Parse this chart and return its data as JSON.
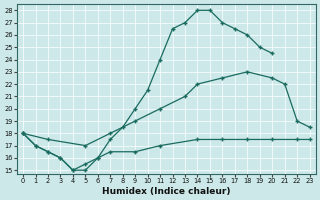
{
  "xlabel": "Humidex (Indice chaleur)",
  "bg_color": "#cce8e8",
  "line_color": "#1a6b60",
  "grid_color": "#b8d8d8",
  "xlim": [
    -0.5,
    23.5
  ],
  "ylim": [
    14.7,
    28.5
  ],
  "yticks": [
    15,
    16,
    17,
    18,
    19,
    20,
    21,
    22,
    23,
    24,
    25,
    26,
    27,
    28
  ],
  "xticks": [
    0,
    1,
    2,
    3,
    4,
    5,
    6,
    7,
    8,
    9,
    10,
    11,
    12,
    13,
    14,
    15,
    16,
    17,
    18,
    19,
    20,
    21,
    22,
    23
  ],
  "line1_x": [
    0,
    1,
    2,
    3,
    4,
    5,
    6,
    7,
    8,
    9,
    10,
    11,
    12,
    13,
    14,
    15,
    16,
    17,
    18,
    19,
    20
  ],
  "line1_y": [
    18,
    17,
    16.5,
    16,
    15,
    15,
    16,
    17.5,
    18.5,
    20,
    21.5,
    24,
    26.5,
    27,
    28,
    28,
    27,
    26.5,
    26,
    25,
    24.5
  ],
  "line2_x": [
    0,
    2,
    5,
    7,
    9,
    11,
    13,
    14,
    16,
    18,
    20,
    21,
    22,
    23
  ],
  "line2_y": [
    18,
    17.5,
    17,
    18,
    19,
    20,
    21,
    22,
    22.5,
    23,
    22.5,
    22,
    19,
    18.5
  ],
  "line3_x": [
    0,
    1,
    2,
    3,
    4,
    5,
    6,
    7,
    9,
    11,
    14,
    16,
    18,
    20,
    22,
    23
  ],
  "line3_y": [
    18,
    17,
    16.5,
    16,
    15,
    15.5,
    16,
    16.5,
    16.5,
    17,
    17.5,
    17.5,
    17.5,
    17.5,
    17.5,
    17.5
  ]
}
